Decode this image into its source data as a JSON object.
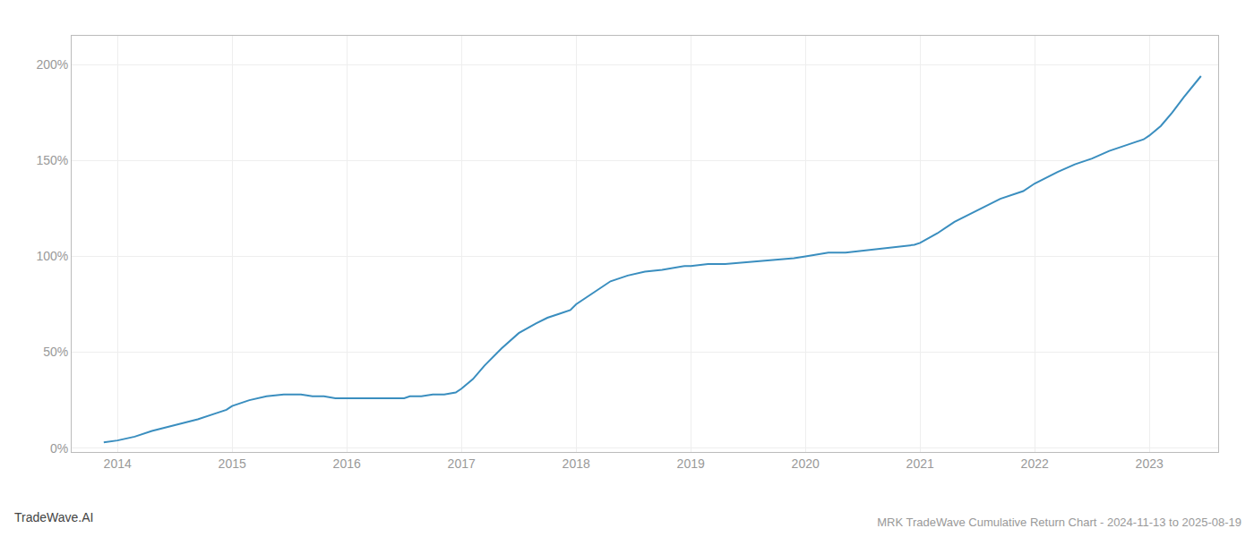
{
  "chart_data": {
    "type": "line",
    "title": "MRK TradeWave Cumulative Return Chart - 2024-11-13 to 2025-08-19",
    "annotations": [
      "TradeWave.AI"
    ],
    "color": "#3a8ebf",
    "x": [
      2013.88,
      2014.0,
      2014.15,
      2014.3,
      2014.5,
      2014.7,
      2014.85,
      2014.95,
      2015.0,
      2015.15,
      2015.3,
      2015.45,
      2015.55,
      2015.6,
      2015.7,
      2015.8,
      2015.9,
      2016.0,
      2016.1,
      2016.2,
      2016.4,
      2016.5,
      2016.55,
      2016.65,
      2016.75,
      2016.85,
      2016.95,
      2017.0,
      2017.1,
      2017.2,
      2017.35,
      2017.5,
      2017.65,
      2017.75,
      2017.85,
      2017.95,
      2018.0,
      2018.1,
      2018.2,
      2018.3,
      2018.45,
      2018.6,
      2018.75,
      2018.85,
      2018.95,
      2019.0,
      2019.15,
      2019.3,
      2019.5,
      2019.7,
      2019.9,
      2020.0,
      2020.1,
      2020.2,
      2020.35,
      2020.5,
      2020.65,
      2020.8,
      2020.95,
      2021.0,
      2021.15,
      2021.3,
      2021.5,
      2021.7,
      2021.9,
      2022.0,
      2022.2,
      2022.35,
      2022.5,
      2022.65,
      2022.8,
      2022.95,
      2023.0,
      2023.1,
      2023.2,
      2023.3,
      2023.45
    ],
    "values": [
      3,
      4,
      6,
      9,
      12,
      15,
      18,
      20,
      22,
      25,
      27,
      28,
      28,
      28,
      27,
      27,
      26,
      26,
      26,
      26,
      26,
      26,
      27,
      27,
      28,
      28,
      29,
      31,
      36,
      43,
      52,
      60,
      65,
      68,
      70,
      72,
      75,
      79,
      83,
      87,
      90,
      92,
      93,
      94,
      95,
      95,
      96,
      96,
      97,
      98,
      99,
      100,
      101,
      102,
      102,
      103,
      104,
      105,
      106,
      107,
      112,
      118,
      124,
      130,
      134,
      138,
      144,
      148,
      151,
      155,
      158,
      161,
      163,
      168,
      175,
      183,
      194
    ],
    "xlim": [
      2013.6,
      2023.6
    ],
    "ylim": [
      -2,
      215
    ],
    "xticks": [
      2014,
      2015,
      2016,
      2017,
      2018,
      2019,
      2020,
      2021,
      2022,
      2023
    ],
    "yticks": [
      {
        "value": 0,
        "label": "0%"
      },
      {
        "value": 50,
        "label": "50%"
      },
      {
        "value": 100,
        "label": "100%"
      },
      {
        "value": 150,
        "label": "150%"
      },
      {
        "value": 200,
        "label": "200%"
      }
    ],
    "grid": true
  }
}
